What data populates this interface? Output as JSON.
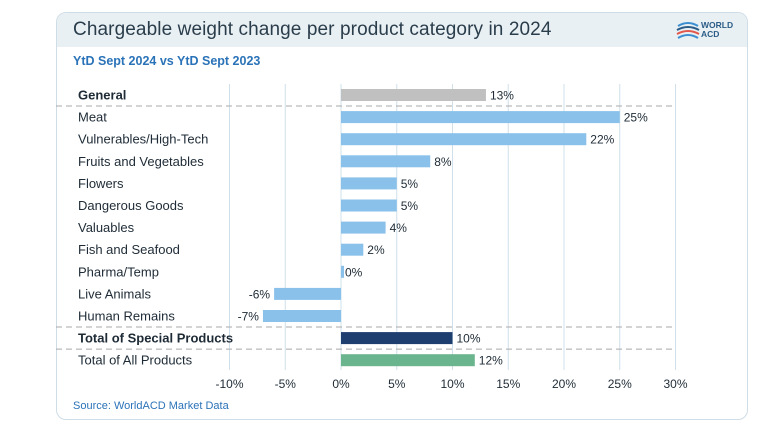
{
  "header": {
    "title": "Chargeable weight change per product category in 2024",
    "subtitle": "YtD Sept 2024 vs YtD Sept 2023",
    "logo_line1": "WORLD",
    "logo_line2": "ACD"
  },
  "footer": {
    "source": "Source: WorldACD Market Data"
  },
  "colors": {
    "general": "#c0c0c0",
    "category": "#8ac1ea",
    "special_total": "#1d3e6e",
    "all_total": "#6bb58e",
    "grid": "#cfe0ea",
    "separator": "#a9a9a9"
  },
  "chart_data": {
    "type": "bar",
    "orientation": "horizontal",
    "xlim": [
      -10,
      30
    ],
    "x_ticks": [
      "-10%",
      "-5%",
      "0%",
      "5%",
      "10%",
      "15%",
      "20%",
      "25%",
      "30%"
    ],
    "x_tick_values": [
      -10,
      -5,
      0,
      5,
      10,
      15,
      20,
      25,
      30
    ],
    "grid": true,
    "categories": [
      "General",
      "Meat",
      "Vulnerables/High-Tech",
      "Fruits and Vegetables",
      "Flowers",
      "Dangerous Goods",
      "Valuables",
      "Fish and Seafood",
      "Pharma/Temp",
      "Live Animals",
      "Human Remains",
      "Total of Special Products",
      "Total of All Products"
    ],
    "values": [
      13,
      25,
      22,
      8,
      5,
      5,
      4,
      2,
      0,
      -6,
      -7,
      10,
      12
    ],
    "value_labels": [
      "13%",
      "25%",
      "22%",
      "8%",
      "5%",
      "5%",
      "4%",
      "2%",
      "0%",
      "-6%",
      "-7%",
      "10%",
      "12%"
    ],
    "bar_roles": [
      "general",
      "category",
      "category",
      "category",
      "category",
      "category",
      "category",
      "category",
      "category",
      "category",
      "category",
      "special_total",
      "all_total"
    ],
    "bold_labels": [
      true,
      false,
      false,
      false,
      false,
      false,
      false,
      false,
      false,
      false,
      false,
      true,
      false
    ],
    "separators_after": [
      0,
      10,
      11
    ]
  }
}
